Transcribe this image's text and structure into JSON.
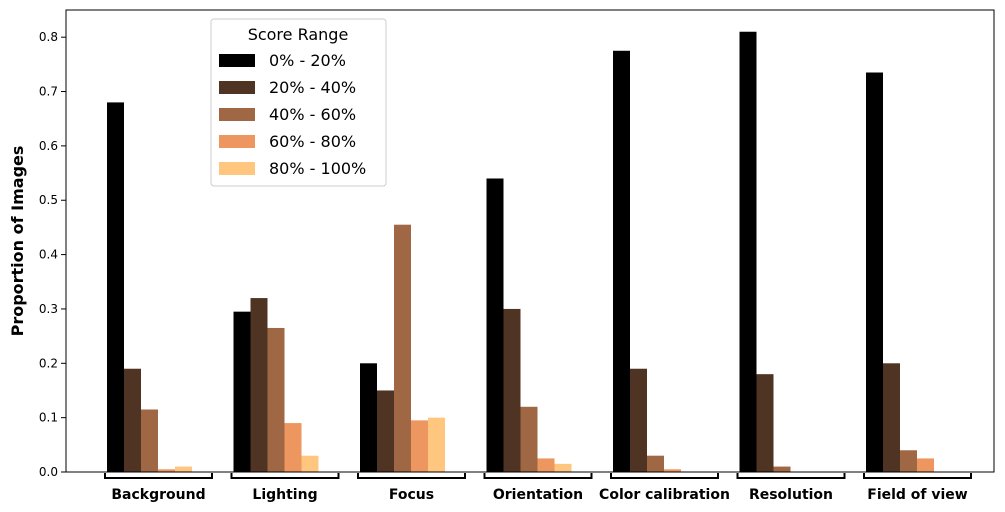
{
  "chart_data": {
    "type": "bar",
    "ylabel": "Proportion of Images",
    "ylim": [
      0,
      0.85
    ],
    "yticks": [
      0.0,
      0.1,
      0.2,
      0.3,
      0.4,
      0.5,
      0.6,
      0.7,
      0.8
    ],
    "ytick_labels": [
      "0.0",
      "0.1",
      "0.2",
      "0.3",
      "0.4",
      "0.5",
      "0.6",
      "0.7",
      "0.8"
    ],
    "categories": [
      "Background",
      "Lighting",
      "Focus",
      "Orientation",
      "Color calibration",
      "Resolution",
      "Field of view"
    ],
    "legend_title": "Score Range",
    "legend_position": "top-left",
    "series": [
      {
        "name": "0% - 20%",
        "color": "#000000",
        "values": [
          0.68,
          0.295,
          0.2,
          0.54,
          0.775,
          0.81,
          0.735
        ]
      },
      {
        "name": "20% - 40%",
        "color": "#4f3323",
        "values": [
          0.19,
          0.32,
          0.15,
          0.3,
          0.19,
          0.18,
          0.2
        ]
      },
      {
        "name": "40% - 60%",
        "color": "#9f6744",
        "values": [
          0.115,
          0.265,
          0.455,
          0.12,
          0.03,
          0.01,
          0.04
        ]
      },
      {
        "name": "60% - 80%",
        "color": "#ee9660",
        "values": [
          0.005,
          0.09,
          0.095,
          0.025,
          0.005,
          0.0,
          0.025
        ]
      },
      {
        "name": "80% - 100%",
        "color": "#ffc680",
        "values": [
          0.01,
          0.03,
          0.1,
          0.015,
          0.0,
          0.0,
          0.0
        ]
      }
    ]
  }
}
